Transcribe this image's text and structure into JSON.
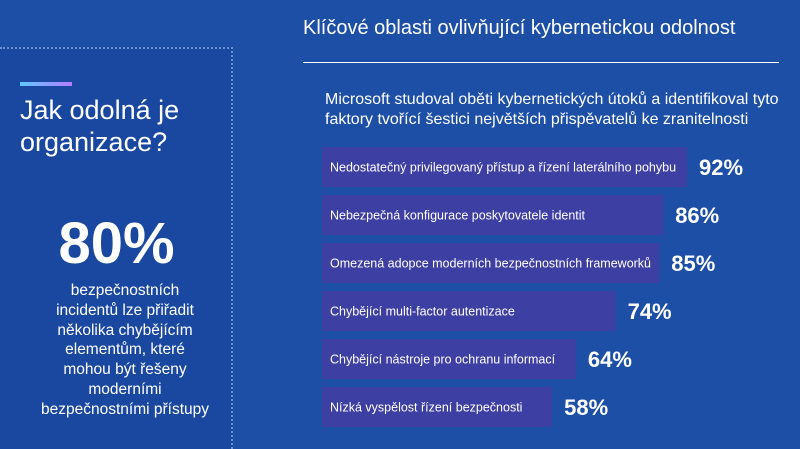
{
  "left_panel": {
    "title": "Jak odolná je organizace?",
    "stat_value": "80%",
    "stat_description": "bezpečnostních incidentů lze přiřadit několika chybějícím elementům, které mohou být řešeny moderními bezpečnostními přístupy"
  },
  "right_panel": {
    "title": "Klíčové oblasti ovlivňující kybernetickou odolnost",
    "subtitle": "Microsoft studoval oběti kybernetických útoků a identifikoval tyto faktory tvořící šestici největších přispěvatelů ke zranitelnosti"
  },
  "colors": {
    "background": "#1d4fa6",
    "bar": "#3d3fa3",
    "accent_start": "#5fc8ff",
    "accent_end": "#b47cff"
  },
  "chart_data": {
    "type": "bar",
    "orientation": "horizontal",
    "categories": [
      "Nedostatečný privilegovaný přístup a řízení laterálního pohybu",
      "Nebezpečná konfigurace poskytovatele identit",
      "Omezená adopce moderních bezpečnostních frameworků",
      "Chybějící multi-factor autentizace",
      "Chybějící nástroje pro ochranu informací",
      "Nízká vyspělost řízení bezpečnosti"
    ],
    "values": [
      92,
      86,
      85,
      74,
      64,
      58
    ],
    "value_labels": [
      "92%",
      "86%",
      "85%",
      "74%",
      "64%",
      "58%"
    ],
    "unit": "%",
    "xlim": [
      0,
      92
    ],
    "grid": false,
    "legend": "none"
  }
}
